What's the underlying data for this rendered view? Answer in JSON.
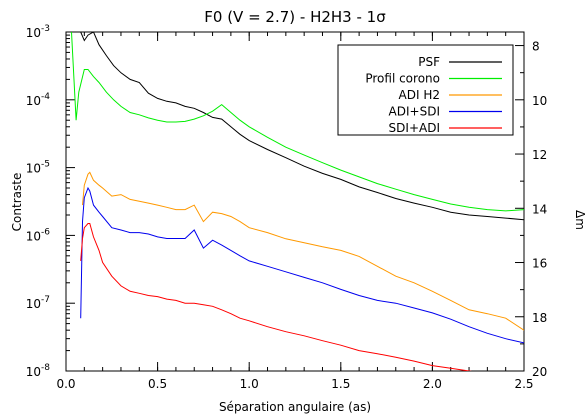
{
  "chart_data": {
    "type": "line",
    "title": "F0 (V = 2.7) - H2H3 - 1σ",
    "xlabel": "Séparation angulaire (as)",
    "ylabel": "Contraste",
    "y2label": "Δm",
    "xlim": [
      0.0,
      2.5
    ],
    "ylim": [
      1e-08,
      0.001
    ],
    "yscale": "log",
    "xticks": [
      "0.0",
      "0.5",
      "1.0",
      "1.5",
      "2.0",
      "2.5"
    ],
    "yticks": [
      {
        "mant": "10",
        "exp": "-8"
      },
      {
        "mant": "10",
        "exp": "-7"
      },
      {
        "mant": "10",
        "exp": "-6"
      },
      {
        "mant": "10",
        "exp": "-5"
      },
      {
        "mant": "10",
        "exp": "-4"
      },
      {
        "mant": "10",
        "exp": "-3"
      }
    ],
    "y2ticks": [
      "8",
      "10",
      "12",
      "14",
      "16",
      "18",
      "20"
    ],
    "y2_zero_point_contrast": 1.0,
    "legend_position": "top-right",
    "series": [
      {
        "name": "PSF",
        "color": "#000000",
        "x": [
          0.05,
          0.08,
          0.1,
          0.12,
          0.15,
          0.18,
          0.22,
          0.26,
          0.3,
          0.35,
          0.4,
          0.45,
          0.5,
          0.55,
          0.6,
          0.65,
          0.7,
          0.75,
          0.8,
          0.85,
          0.9,
          0.95,
          1.0,
          1.1,
          1.2,
          1.3,
          1.4,
          1.5,
          1.6,
          1.7,
          1.8,
          1.9,
          2.0,
          2.1,
          2.2,
          2.3,
          2.4,
          2.5
        ],
        "y": [
          0.001,
          0.001,
          0.00075,
          0.0009,
          0.001,
          0.00065,
          0.00045,
          0.00032,
          0.00025,
          0.0002,
          0.00018,
          0.000125,
          0.000105,
          9.5e-05,
          9e-05,
          8e-05,
          7.5e-05,
          6.5e-05,
          5.5e-05,
          5.2e-05,
          4e-05,
          3.1e-05,
          2.5e-05,
          1.85e-05,
          1.4e-05,
          1.05e-05,
          8.2e-06,
          6.7e-06,
          5.2e-06,
          4.3e-06,
          3.5e-06,
          3e-06,
          2.6e-06,
          2.2e-06,
          2e-06,
          1.9e-06,
          1.8e-06,
          1.7e-06
        ]
      },
      {
        "name": "Profil corono",
        "color": "#00ee00",
        "x": [
          0.03,
          0.055,
          0.07,
          0.1,
          0.12,
          0.15,
          0.18,
          0.22,
          0.26,
          0.3,
          0.35,
          0.4,
          0.45,
          0.5,
          0.55,
          0.6,
          0.65,
          0.7,
          0.75,
          0.8,
          0.85,
          0.9,
          0.95,
          1.0,
          1.1,
          1.2,
          1.3,
          1.4,
          1.5,
          1.6,
          1.7,
          1.8,
          1.9,
          2.0,
          2.1,
          2.2,
          2.3,
          2.4,
          2.5
        ],
        "y": [
          0.001,
          5e-05,
          0.00013,
          0.00028,
          0.00028,
          0.00022,
          0.00018,
          0.00013,
          0.0001,
          8e-05,
          6.5e-05,
          6e-05,
          5.4e-05,
          5e-05,
          4.7e-05,
          4.7e-05,
          4.8e-05,
          5.2e-05,
          5.8e-05,
          6.8e-05,
          8.5e-05,
          6.5e-05,
          5e-05,
          4e-05,
          2.8e-05,
          2e-05,
          1.53e-05,
          1.18e-05,
          9.2e-06,
          7.3e-06,
          5.8e-06,
          4.8e-06,
          4e-06,
          3.4e-06,
          2.9e-06,
          2.6e-06,
          2.4e-06,
          2.3e-06,
          2.4e-06
        ]
      },
      {
        "name": "ADI H2",
        "color": "#ff9900",
        "x": [
          0.09,
          0.1,
          0.12,
          0.13,
          0.15,
          0.18,
          0.2,
          0.25,
          0.3,
          0.35,
          0.4,
          0.45,
          0.5,
          0.55,
          0.6,
          0.65,
          0.7,
          0.75,
          0.8,
          0.85,
          0.9,
          0.95,
          1.0,
          1.1,
          1.2,
          1.3,
          1.4,
          1.5,
          1.6,
          1.7,
          1.8,
          1.9,
          2.0,
          2.1,
          2.2,
          2.3,
          2.4,
          2.5
        ],
        "y": [
          2.8e-06,
          5.5e-06,
          8e-06,
          8.5e-06,
          6.5e-06,
          5.5e-06,
          5e-06,
          3.8e-06,
          4e-06,
          3.4e-06,
          3.2e-06,
          3e-06,
          2.8e-06,
          2.6e-06,
          2.4e-06,
          2.4e-06,
          2.8e-06,
          1.6e-06,
          2.2e-06,
          2.1e-06,
          1.9e-06,
          1.6e-06,
          1.3e-06,
          1.1e-06,
          8.9e-07,
          7.8e-07,
          6.8e-07,
          6e-07,
          4.9e-07,
          3.5e-07,
          2.5e-07,
          2e-07,
          1.5e-07,
          1.1e-07,
          8e-08,
          7e-08,
          6e-08,
          4e-08
        ]
      },
      {
        "name": "ADI+SDI",
        "color": "#0000ee",
        "x": [
          0.08,
          0.09,
          0.1,
          0.12,
          0.13,
          0.15,
          0.18,
          0.2,
          0.25,
          0.3,
          0.35,
          0.4,
          0.45,
          0.5,
          0.55,
          0.6,
          0.65,
          0.7,
          0.75,
          0.8,
          0.85,
          0.9,
          0.95,
          1.0,
          1.1,
          1.2,
          1.3,
          1.4,
          1.5,
          1.6,
          1.7,
          1.8,
          1.9,
          2.0,
          2.1,
          2.2,
          2.3,
          2.4,
          2.5
        ],
        "y": [
          6e-08,
          1.6e-06,
          3.6e-06,
          5e-06,
          4.5e-06,
          2.8e-06,
          2.2e-06,
          1.9e-06,
          1.3e-06,
          1.2e-06,
          1.1e-06,
          1.1e-06,
          1.05e-06,
          9.5e-07,
          9e-07,
          9e-07,
          9e-07,
          1.2e-06,
          6.5e-07,
          8.5e-07,
          7.2e-07,
          6e-07,
          5e-07,
          4.2e-07,
          3.5e-07,
          2.9e-07,
          2.4e-07,
          2e-07,
          1.6e-07,
          1.3e-07,
          1.1e-07,
          1e-07,
          8.5e-08,
          7.2e-08,
          5.8e-08,
          4.5e-08,
          3.6e-08,
          3e-08,
          2.6e-08
        ]
      },
      {
        "name": "SDI+ADI",
        "color": "#ff0000",
        "x": [
          0.08,
          0.09,
          0.1,
          0.12,
          0.13,
          0.15,
          0.18,
          0.2,
          0.25,
          0.3,
          0.35,
          0.4,
          0.45,
          0.5,
          0.55,
          0.6,
          0.65,
          0.7,
          0.75,
          0.8,
          0.85,
          0.9,
          0.95,
          1.0,
          1.1,
          1.2,
          1.3,
          1.4,
          1.5,
          1.6,
          1.7,
          1.8,
          1.9,
          2.0,
          2.1,
          2.2,
          2.3,
          2.4,
          2.5
        ],
        "y": [
          4.2e-07,
          9e-07,
          1.3e-06,
          1.5e-06,
          1.5e-06,
          9.5e-07,
          6e-07,
          4e-07,
          2.5e-07,
          1.8e-07,
          1.5e-07,
          1.4e-07,
          1.3e-07,
          1.25e-07,
          1.15e-07,
          1.1e-07,
          1e-07,
          1e-07,
          9.5e-08,
          9e-08,
          8e-08,
          7e-08,
          6e-08,
          5.5e-08,
          4.5e-08,
          3.8e-08,
          3.3e-08,
          2.8e-08,
          2.4e-08,
          2e-08,
          1.8e-08,
          1.6e-08,
          1.4e-08,
          1.2e-08,
          1.1e-08,
          1e-08,
          9e-09,
          8.5e-09,
          8e-09
        ]
      }
    ]
  }
}
